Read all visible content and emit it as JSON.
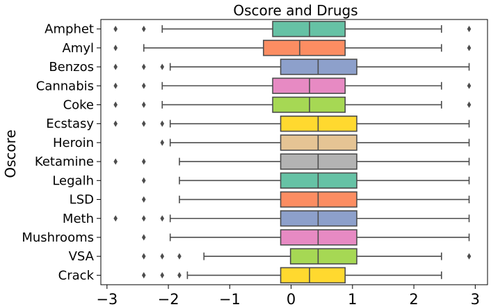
{
  "chart_data": {
    "type": "boxplot",
    "orientation": "horizontal",
    "title": "Oscore and Drugs",
    "xlabel": "",
    "ylabel": "Oscore",
    "xlim": [
      -3.1,
      3.2
    ],
    "xticks": [
      -3,
      -2,
      -1,
      0,
      1,
      2,
      3
    ],
    "xtick_labels": [
      "−3",
      "−2",
      "−1",
      "0",
      "1",
      "2",
      "3"
    ],
    "grid": false,
    "categories": [
      "Amphet",
      "Amyl",
      "Benzos",
      "Cannabis",
      "Coke",
      "Ecstasy",
      "Heroin",
      "Ketamine",
      "Legalh",
      "LSD",
      "Meth",
      "Mushrooms",
      "VSA",
      "Crack"
    ],
    "colors": [
      "#66c2a5",
      "#fc8d62",
      "#8da0cb",
      "#e78ac3",
      "#a6d854",
      "#ffd92f",
      "#e5c494",
      "#b3b3b3",
      "#66c2a5",
      "#fc8d62",
      "#8da0cb",
      "#e78ac3",
      "#a6d854",
      "#ffd92f"
    ],
    "boxes": [
      {
        "label": "Amphet",
        "whisker_low": -2.1,
        "q1": -0.3,
        "median": 0.3,
        "q3": 0.88,
        "whisker_high": 2.45,
        "outliers": [
          -2.86,
          -2.4,
          2.9
        ]
      },
      {
        "label": "Amyl",
        "whisker_low": -2.4,
        "q1": -0.45,
        "median": 0.14,
        "q3": 0.88,
        "whisker_high": 2.45,
        "outliers": [
          -2.86,
          2.9
        ]
      },
      {
        "label": "Benzos",
        "whisker_low": -1.97,
        "q1": -0.17,
        "median": 0.44,
        "q3": 1.07,
        "whisker_high": 2.9,
        "outliers": [
          -2.86,
          -2.4,
          -2.1
        ]
      },
      {
        "label": "Cannabis",
        "whisker_low": -2.1,
        "q1": -0.3,
        "median": 0.3,
        "q3": 0.88,
        "whisker_high": 2.45,
        "outliers": [
          -2.86,
          -2.4,
          2.9
        ]
      },
      {
        "label": "Coke",
        "whisker_low": -2.1,
        "q1": -0.3,
        "median": 0.3,
        "q3": 0.88,
        "whisker_high": 2.45,
        "outliers": [
          -2.86,
          -2.4,
          2.9
        ]
      },
      {
        "label": "Ecstasy",
        "whisker_low": -1.97,
        "q1": -0.17,
        "median": 0.44,
        "q3": 1.07,
        "whisker_high": 2.9,
        "outliers": [
          -2.86,
          -2.4,
          -2.1
        ]
      },
      {
        "label": "Heroin",
        "whisker_low": -1.97,
        "q1": -0.17,
        "median": 0.44,
        "q3": 1.07,
        "whisker_high": 2.9,
        "outliers": [
          -2.1
        ]
      },
      {
        "label": "Ketamine",
        "whisker_low": -1.82,
        "q1": -0.17,
        "median": 0.44,
        "q3": 1.07,
        "whisker_high": 2.9,
        "outliers": [
          -2.86,
          -2.4
        ]
      },
      {
        "label": "Legalh",
        "whisker_low": -1.82,
        "q1": -0.17,
        "median": 0.44,
        "q3": 1.07,
        "whisker_high": 2.9,
        "outliers": [
          -2.4
        ]
      },
      {
        "label": "LSD",
        "whisker_low": -1.82,
        "q1": -0.17,
        "median": 0.44,
        "q3": 1.07,
        "whisker_high": 2.9,
        "outliers": [
          -2.4
        ]
      },
      {
        "label": "Meth",
        "whisker_low": -1.97,
        "q1": -0.17,
        "median": 0.44,
        "q3": 1.07,
        "whisker_high": 2.9,
        "outliers": [
          -2.86,
          -2.4,
          -2.1
        ]
      },
      {
        "label": "Mushrooms",
        "whisker_low": -1.97,
        "q1": -0.17,
        "median": 0.44,
        "q3": 1.07,
        "whisker_high": 2.9,
        "outliers": [
          -2.4
        ]
      },
      {
        "label": "VSA",
        "whisker_low": -1.42,
        "q1": -0.01,
        "median": 0.44,
        "q3": 1.07,
        "whisker_high": 2.45,
        "outliers": [
          -2.4,
          -2.1,
          -1.82,
          2.9
        ]
      },
      {
        "label": "Crack",
        "whisker_low": -1.69,
        "q1": -0.17,
        "median": 0.3,
        "q3": 0.88,
        "whisker_high": 2.45,
        "outliers": [
          -2.4,
          -2.1,
          -1.82
        ]
      }
    ]
  }
}
